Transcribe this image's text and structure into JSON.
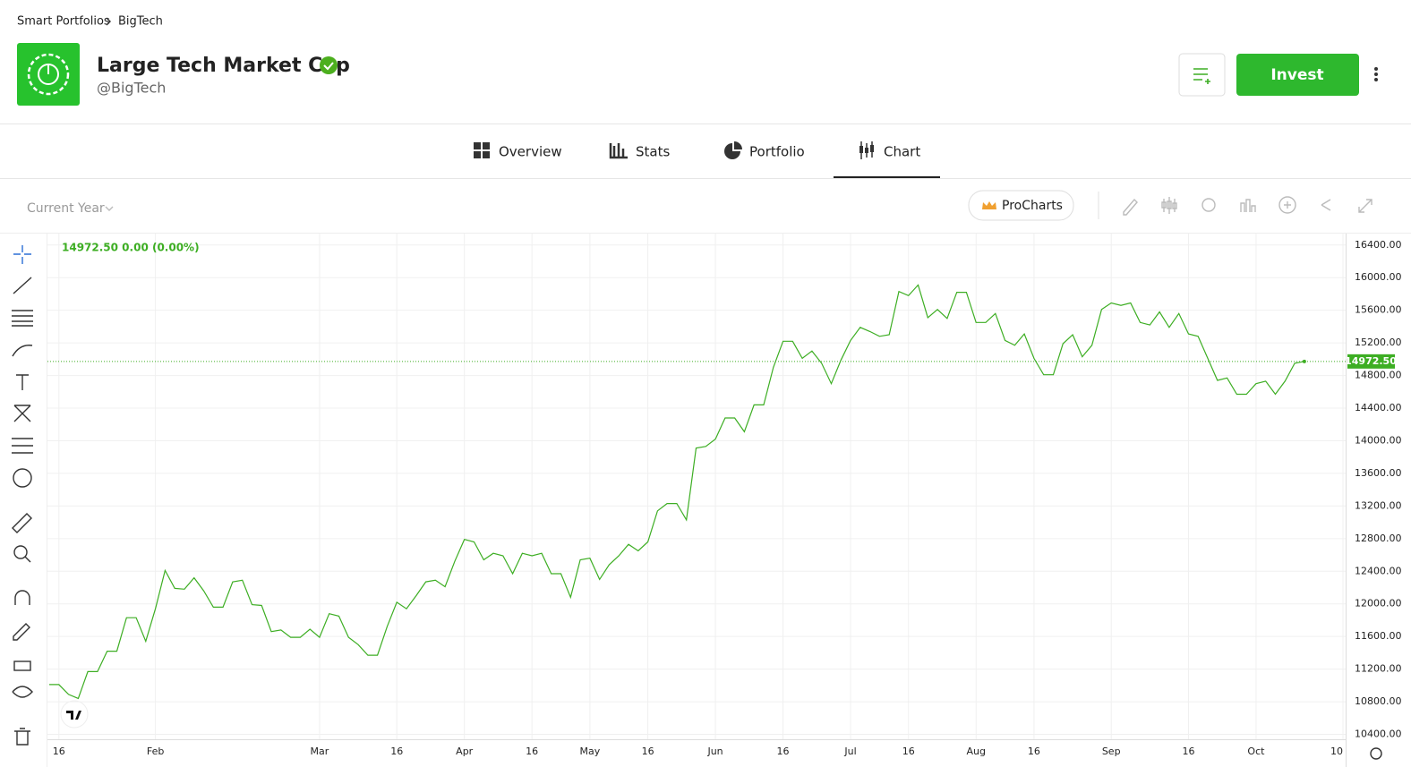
{
  "breadcrumb": [
    "Smart Portfolios",
    "BigTech"
  ],
  "header": {
    "title": "Large Tech Market Cap",
    "handle": "@BigTech",
    "invest": "Invest"
  },
  "tabs": [
    "Overview",
    "Stats",
    "Portfolio",
    "Chart"
  ],
  "toolbar": {
    "period": "Current Year",
    "procharts": "ProCharts"
  },
  "chart_data": {
    "type": "line",
    "legend_text": "14972.50  0.00 (0.00%)",
    "color": "#3dae23",
    "grid": true,
    "last_value": {
      "value": 14972.5,
      "label": "14972.50"
    },
    "values": [
      11010,
      11010,
      10890,
      10840,
      11170,
      11170,
      11420,
      11420,
      11830,
      11830,
      11540,
      11940,
      12410,
      12190,
      12180,
      12320,
      12160,
      11960,
      11960,
      12270,
      12290,
      11990,
      11980,
      11660,
      11680,
      11590,
      11590,
      11690,
      11590,
      11880,
      11850,
      11590,
      11500,
      11370,
      11370,
      11720,
      12020,
      11940,
      12100,
      12270,
      12290,
      12210,
      12520,
      12790,
      12760,
      12540,
      12620,
      12590,
      12370,
      12620,
      12590,
      12620,
      12370,
      12370,
      12080,
      12540,
      12560,
      12300,
      12480,
      12590,
      12730,
      12650,
      12760,
      13140,
      13230,
      13230,
      13030,
      13910,
      13930,
      14020,
      14280,
      14280,
      14110,
      14440,
      14440,
      14900,
      15220,
      15220,
      15010,
      15100,
      14950,
      14700,
      14990,
      15230,
      15390,
      15340,
      15280,
      15300,
      15830,
      15780,
      15910,
      15510,
      15610,
      15500,
      15820,
      15820,
      15450,
      15450,
      15560,
      15230,
      15170,
      15310,
      15010,
      14810,
      14810,
      15190,
      15300,
      15030,
      15170,
      15610,
      15690,
      15660,
      15690,
      15450,
      15420,
      15580,
      15390,
      15560,
      15310,
      15280,
      15010,
      14740,
      14770,
      14570,
      14570,
      14700,
      14730,
      14570,
      14730,
      14950,
      14972.5
    ],
    "xlim": [
      0,
      134
    ],
    "xticks": [
      {
        "value": 1,
        "label": "16"
      },
      {
        "value": 11,
        "label": "Feb"
      },
      {
        "value": 28,
        "label": "Mar"
      },
      {
        "value": 36,
        "label": "16"
      },
      {
        "value": 43,
        "label": "Apr"
      },
      {
        "value": 50,
        "label": "16"
      },
      {
        "value": 56,
        "label": "May"
      },
      {
        "value": 62,
        "label": "16"
      },
      {
        "value": 69,
        "label": "Jun"
      },
      {
        "value": 76,
        "label": "16"
      },
      {
        "value": 83,
        "label": "Jul"
      },
      {
        "value": 89,
        "label": "16"
      },
      {
        "value": 96,
        "label": "Aug"
      },
      {
        "value": 102,
        "label": "16"
      },
      {
        "value": 110,
        "label": "Sep"
      },
      {
        "value": 118,
        "label": "16"
      },
      {
        "value": 125,
        "label": "Oct"
      },
      {
        "value": 134,
        "label": "10"
      }
    ],
    "ylim": [
      10340,
      16540
    ],
    "yticks": [
      {
        "value": 10400,
        "label": "10400.00"
      },
      {
        "value": 10800,
        "label": "10800.00"
      },
      {
        "value": 11200,
        "label": "11200.00"
      },
      {
        "value": 11600,
        "label": "11600.00"
      },
      {
        "value": 12000,
        "label": "12000.00"
      },
      {
        "value": 12400,
        "label": "12400.00"
      },
      {
        "value": 12800,
        "label": "12800.00"
      },
      {
        "value": 13200,
        "label": "13200.00"
      },
      {
        "value": 13600,
        "label": "13600.00"
      },
      {
        "value": 14000,
        "label": "14000.00"
      },
      {
        "value": 14400,
        "label": "14400.00"
      },
      {
        "value": 14800,
        "label": "14800.00"
      },
      {
        "value": 15200,
        "label": "15200.00"
      },
      {
        "value": 15600,
        "label": "15600.00"
      },
      {
        "value": 16000,
        "label": "16000.00"
      },
      {
        "value": 16400,
        "label": "16400.00"
      }
    ]
  }
}
